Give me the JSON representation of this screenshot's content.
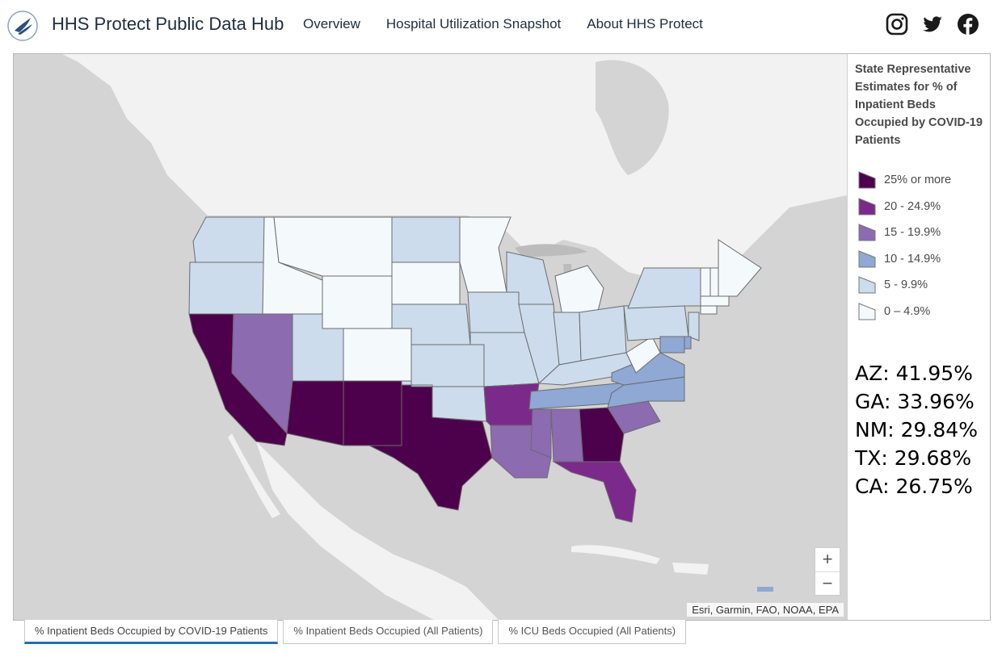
{
  "header": {
    "site_title": "HHS Protect Public Data Hub",
    "nav": [
      "Overview",
      "Hospital Utilization Snapshot",
      "About HHS Protect"
    ],
    "social": [
      "instagram-icon",
      "twitter-icon",
      "facebook-icon"
    ]
  },
  "legend": {
    "title": "State Representative Estimates for % of Inpatient Beds Occupied by COVID-19 Patients",
    "items": [
      {
        "label": "25% or more",
        "color": "#4d004b"
      },
      {
        "label": "20 - 24.9%",
        "color": "#7b2a8c"
      },
      {
        "label": "15 - 19.9%",
        "color": "#8c6bb1"
      },
      {
        "label": "10 - 14.9%",
        "color": "#8fa8d4"
      },
      {
        "label": "5 - 9.9%",
        "color": "#ccdcec"
      },
      {
        "label": "0 – 4.9%",
        "color": "#f4fafb"
      }
    ]
  },
  "stats": [
    "AZ: 41.95%",
    "GA: 33.96%",
    "NM: 29.84%",
    "TX: 29.68%",
    "CA: 26.75%"
  ],
  "map": {
    "attribution": "Esri, Garmin, FAO, NOAA, EPA",
    "zoom_in": "+",
    "zoom_out": "−",
    "states": [
      {
        "id": "WA",
        "bin": 4
      },
      {
        "id": "OR",
        "bin": 4
      },
      {
        "id": "CA",
        "bin": 0
      },
      {
        "id": "NV",
        "bin": 2
      },
      {
        "id": "ID",
        "bin": 5
      },
      {
        "id": "MT",
        "bin": 5
      },
      {
        "id": "WY",
        "bin": 5
      },
      {
        "id": "UT",
        "bin": 4
      },
      {
        "id": "CO",
        "bin": 5
      },
      {
        "id": "AZ",
        "bin": 0
      },
      {
        "id": "NM",
        "bin": 0
      },
      {
        "id": "TX",
        "bin": 0
      },
      {
        "id": "ND",
        "bin": 4
      },
      {
        "id": "SD",
        "bin": 5
      },
      {
        "id": "NE",
        "bin": 4
      },
      {
        "id": "KS",
        "bin": 4
      },
      {
        "id": "OK",
        "bin": 4
      },
      {
        "id": "MN",
        "bin": 5
      },
      {
        "id": "IA",
        "bin": 4
      },
      {
        "id": "MO",
        "bin": 4
      },
      {
        "id": "AR",
        "bin": 1
      },
      {
        "id": "LA",
        "bin": 2
      },
      {
        "id": "WI",
        "bin": 4
      },
      {
        "id": "IL",
        "bin": 4
      },
      {
        "id": "MI",
        "bin": 5
      },
      {
        "id": "IN",
        "bin": 4
      },
      {
        "id": "OH",
        "bin": 4
      },
      {
        "id": "KY",
        "bin": 4
      },
      {
        "id": "TN",
        "bin": 3
      },
      {
        "id": "MS",
        "bin": 2
      },
      {
        "id": "AL",
        "bin": 2
      },
      {
        "id": "GA",
        "bin": 0
      },
      {
        "id": "FL",
        "bin": 1
      },
      {
        "id": "SC",
        "bin": 2
      },
      {
        "id": "NC",
        "bin": 3
      },
      {
        "id": "VA",
        "bin": 3
      },
      {
        "id": "WV",
        "bin": 5
      },
      {
        "id": "PA",
        "bin": 4
      },
      {
        "id": "NY",
        "bin": 4
      },
      {
        "id": "VT",
        "bin": 5
      },
      {
        "id": "NH",
        "bin": 5
      },
      {
        "id": "ME",
        "bin": 5
      },
      {
        "id": "MA",
        "bin": 5
      },
      {
        "id": "CT",
        "bin": 5
      },
      {
        "id": "NJ",
        "bin": 4
      },
      {
        "id": "MD",
        "bin": 3
      },
      {
        "id": "DE",
        "bin": 3
      }
    ]
  },
  "tabs": [
    {
      "label": "% Inpatient Beds Occupied by COVID-19 Patients",
      "active": true
    },
    {
      "label": "% Inpatient Beds Occupied (All Patients)",
      "active": false
    },
    {
      "label": "% ICU Beds Occupied (All Patients)",
      "active": false
    }
  ]
}
